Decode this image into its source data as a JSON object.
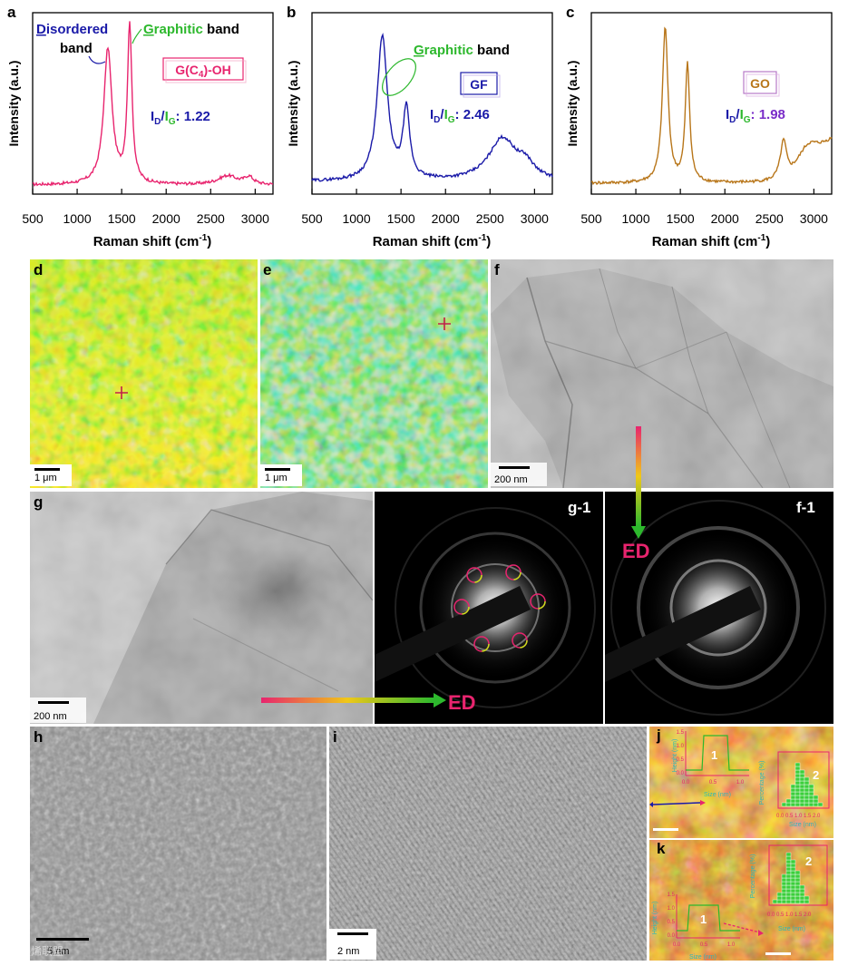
{
  "panels": {
    "a": {
      "label": "a"
    },
    "b": {
      "label": "b"
    },
    "c": {
      "label": "c"
    },
    "d": {
      "label": "d",
      "scale": "1 μm"
    },
    "e": {
      "label": "e",
      "scale": "1 μm"
    },
    "f": {
      "label": "f",
      "scale": "200 nm"
    },
    "g": {
      "label": "g",
      "scale": "200 nm"
    },
    "g1": {
      "label": "g-1"
    },
    "f1": {
      "label": "f-1"
    },
    "h": {
      "label": "h",
      "scale": "5 nm"
    },
    "i": {
      "label": "i",
      "scale": "2 nm"
    },
    "j": {
      "label": "j"
    },
    "k": {
      "label": "k"
    }
  },
  "spectra": {
    "ylabel": "Intensity (a.u.)",
    "xlabel_main": "Raman shift  (cm",
    "xlabel_sup": "-1",
    "xlabel_end": ")",
    "xticks": [
      "500",
      "1000",
      "1500",
      "2000",
      "2500",
      "3000"
    ],
    "a": {
      "color": "#e8246e",
      "name": "G(C",
      "name_sub": "4",
      "name_end": ")-OH",
      "ratio_value": ": 1.22",
      "disordered_first": "D",
      "disordered_rest": "isordered",
      "band_word": "band",
      "graphitic_first": "G",
      "graphitic_rest": "raphitic",
      "graphitic_band": " band"
    },
    "b": {
      "color": "#1a1aa8",
      "name": "GF",
      "ratio_value": ": 2.46",
      "graphitic_first": "G",
      "graphitic_rest": "raphitic",
      "graphitic_band": " band"
    },
    "c": {
      "color": "#b8761a",
      "name": "GO",
      "ratio_value": ": 1.98"
    },
    "ratio_I": "I",
    "ratio_D": "D",
    "ratio_slash": "/",
    "ratio_G": "G"
  },
  "ed_label": "ED",
  "afm": {
    "j": {
      "inset1": {
        "label": "1",
        "ylabel": "Height (nm)",
        "xlabel": "Size (nm)",
        "yticks": [
          "1.5",
          "1.0",
          "0.5",
          "0.0"
        ],
        "xticks": [
          "0.0",
          "0.5",
          "1.0"
        ]
      },
      "inset2": {
        "label": "2",
        "ylabel": "Percentage (%)",
        "xlabel": "Size (nm)",
        "xticks": "0.0 0.5 1.0 1.5 2.0"
      }
    },
    "k": {
      "inset1": {
        "label": "1",
        "ylabel": "Height (nm)",
        "xlabel": "Size (nm)",
        "yticks": [
          "1.5",
          "1.0",
          "0.5",
          "0.0"
        ],
        "xticks": [
          "0.0",
          "0.5",
          "1.0"
        ]
      },
      "inset2": {
        "label": "2",
        "ylabel": "Percentage (%)",
        "xlabel": "Size (nm)",
        "xticks": "0.0 0.5 1.0 1.5 2.0"
      }
    }
  },
  "watermark": "石墨烯联盟"
}
